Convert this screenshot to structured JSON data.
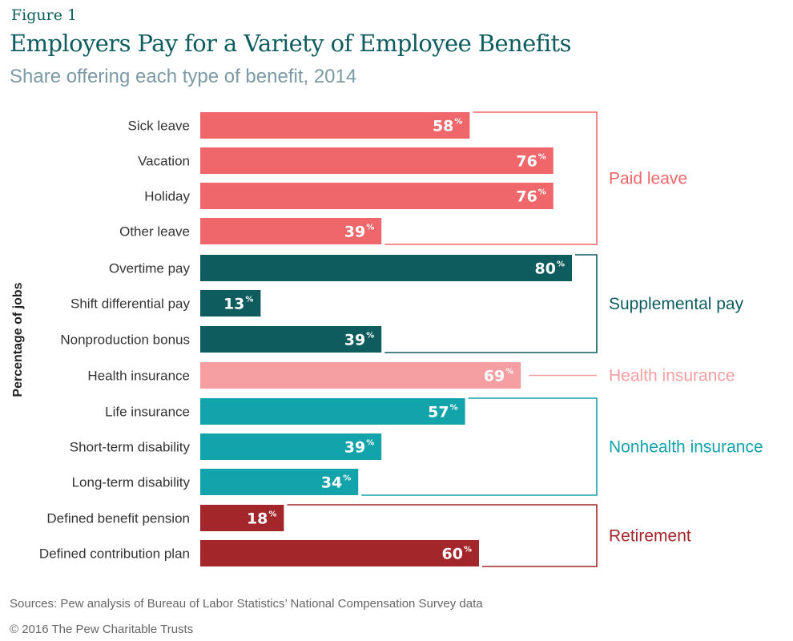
{
  "header": {
    "figure_label": "Figure 1",
    "title": "Employers Pay for a Variety of Employee Benefits",
    "subtitle": "Share offering each type of benefit, 2014"
  },
  "footer": {
    "source": "Sources: Pew analysis of Bureau of Labor Statistics’ National Compensation Survey data",
    "copyright": "© 2016 The Pew Charitable Trusts"
  },
  "chart_data": {
    "type": "bar",
    "orientation": "horizontal",
    "ylabel": "Percentage of jobs",
    "value_suffix": "%",
    "xlim": [
      0,
      100
    ],
    "grid": false,
    "categories": [
      "Sick leave",
      "Vacation",
      "Holiday",
      "Other leave",
      "Overtime pay",
      "Shift differential pay",
      "Nonproduction bonus",
      "Health insurance",
      "Life insurance",
      "Short-term disability",
      "Long-term disability",
      "Defined benefit pension",
      "Defined contribution plan"
    ],
    "values": [
      58,
      76,
      76,
      39,
      80,
      13,
      39,
      69,
      57,
      39,
      34,
      18,
      60
    ],
    "groups": [
      {
        "name": "Paid leave",
        "color": "#f0676b",
        "categories": [
          "Sick leave",
          "Vacation",
          "Holiday",
          "Other leave"
        ]
      },
      {
        "name": "Supplemental pay",
        "color": "#0e5c5e",
        "categories": [
          "Overtime pay",
          "Shift differential pay",
          "Nonproduction bonus"
        ]
      },
      {
        "name": "Health insurance",
        "color": "#f59fa2",
        "categories": [
          "Health insurance"
        ]
      },
      {
        "name": "Nonhealth insurance",
        "color": "#13a3ab",
        "categories": [
          "Life insurance",
          "Short-term disability",
          "Long-term disability"
        ]
      },
      {
        "name": "Retirement",
        "color": "#a3272a",
        "categories": [
          "Defined benefit pension",
          "Defined contribution plan"
        ]
      }
    ]
  }
}
